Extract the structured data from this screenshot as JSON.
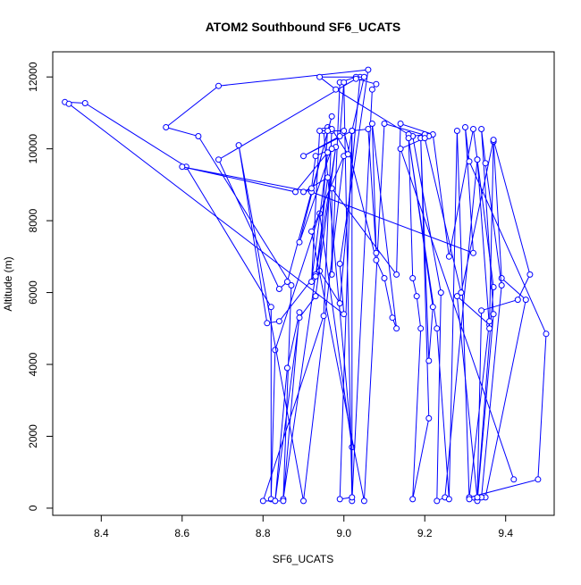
{
  "chart_data": {
    "type": "line",
    "title": "ATOM2 Southbound SF6_UCATS",
    "xlabel": "SF6_UCATS",
    "ylabel": "Altitude (m)",
    "xlim": [
      8.28,
      9.52
    ],
    "ylim": [
      -200,
      12700
    ],
    "xticks": [
      8.4,
      8.6,
      8.8,
      9.0,
      9.2,
      9.4
    ],
    "yticks": [
      0,
      2000,
      4000,
      6000,
      8000,
      10000,
      12000
    ],
    "xtick_labels": [
      "8.4",
      "8.6",
      "8.8",
      "9.0",
      "9.2",
      "9.4"
    ],
    "ytick_labels": [
      "0",
      "2000",
      "4000",
      "6000",
      "8000",
      "10000",
      "12000"
    ],
    "line_color": "#0000ff",
    "marker": "open-circle",
    "grid": false,
    "legend": "none",
    "series": [
      {
        "points": [
          [
            8.31,
            11300
          ],
          [
            8.36,
            11270
          ],
          [
            8.61,
            9500
          ],
          [
            8.82,
            5600
          ],
          [
            8.82,
            250
          ],
          [
            8.83,
            4400
          ],
          [
            8.94,
            8200
          ],
          [
            9.02,
            1700
          ],
          [
            8.95,
            10500
          ],
          [
            8.96,
            10600
          ],
          [
            8.94,
            6600
          ],
          [
            8.99,
            5700
          ],
          [
            9.04,
            12000
          ],
          [
            9.03,
            12000
          ],
          [
            8.99,
            11850
          ],
          [
            8.97,
            6500
          ],
          [
            8.97,
            8900
          ],
          [
            9.13,
            6500
          ],
          [
            9.14,
            10700
          ],
          [
            9.22,
            10400
          ],
          [
            9.26,
            7000
          ],
          [
            9.32,
            10550
          ],
          [
            9.33,
            9700
          ],
          [
            9.37,
            6150
          ],
          [
            9.33,
            250
          ],
          [
            9.28,
            5900
          ],
          [
            9.36,
            5100
          ],
          [
            9.37,
            10200
          ],
          [
            9.39,
            6400
          ],
          [
            9.45,
            5800
          ],
          [
            9.35,
            300
          ]
        ]
      },
      {
        "points": [
          [
            8.32,
            11250
          ],
          [
            9.0,
            5400
          ],
          [
            8.99,
            6800
          ],
          [
            9.06,
            12200
          ],
          [
            8.69,
            11750
          ],
          [
            8.56,
            10600
          ],
          [
            8.64,
            10350
          ],
          [
            8.87,
            6200
          ],
          [
            8.85,
            250
          ],
          [
            8.93,
            6500
          ],
          [
            8.84,
            5200
          ],
          [
            8.81,
            5150
          ],
          [
            8.74,
            10100
          ],
          [
            8.9,
            200
          ],
          [
            9.0,
            9800
          ],
          [
            8.92,
            7700
          ],
          [
            9.05,
            200
          ],
          [
            9.1,
            10700
          ],
          [
            9.21,
            10350
          ],
          [
            9.2,
            10400
          ],
          [
            9.17,
            10350
          ],
          [
            9.24,
            6000
          ],
          [
            9.23,
            200
          ],
          [
            9.25,
            300
          ],
          [
            9.33,
            9700
          ],
          [
            9.36,
            5000
          ],
          [
            9.36,
            5200
          ],
          [
            9.31,
            300
          ],
          [
            9.48,
            800
          ],
          [
            9.5,
            4850
          ],
          [
            9.31,
            9650
          ],
          [
            9.3,
            10600
          ],
          [
            9.32,
            7100
          ],
          [
            8.92,
            8800
          ],
          [
            8.6,
            9500
          ],
          [
            8.88,
            8800
          ],
          [
            8.96,
            9900
          ],
          [
            8.92,
            6300
          ],
          [
            8.94,
            10500
          ],
          [
            8.97,
            10500
          ],
          [
            9.0,
            10500
          ],
          [
            9.08,
            6900
          ],
          [
            9.1,
            6400
          ],
          [
            9.12,
            5300
          ],
          [
            9.13,
            5000
          ],
          [
            9.07,
            10700
          ],
          [
            9.08,
            7100
          ],
          [
            9.06,
            10550
          ],
          [
            9.02,
            10500
          ],
          [
            9.01,
            9850
          ],
          [
            8.97,
            10550
          ],
          [
            8.95,
            5350
          ],
          [
            8.8,
            200
          ],
          [
            8.85,
            200
          ],
          [
            8.89,
            5450
          ],
          [
            8.86,
            3900
          ],
          [
            8.83,
            200
          ],
          [
            8.89,
            5300
          ],
          [
            8.93,
            5900
          ],
          [
            8.98,
            10050
          ],
          [
            8.93,
            6450
          ],
          [
            8.96,
            9200
          ],
          [
            8.9,
            8800
          ],
          [
            8.92,
            8900
          ],
          [
            8.93,
            9800
          ],
          [
            8.97,
            10000
          ],
          [
            8.89,
            7400
          ],
          [
            8.96,
            10500
          ],
          [
            8.97,
            10900
          ],
          [
            8.86,
            6300
          ],
          [
            8.84,
            6100
          ],
          [
            8.69,
            9700
          ],
          [
            9.03,
            11950
          ],
          [
            9.08,
            11800
          ],
          [
            9.07,
            11650
          ],
          [
            9.02,
            200
          ],
          [
            9.0,
            11850
          ],
          [
            8.99,
            10350
          ],
          [
            8.9,
            9800
          ],
          [
            9.02,
            10500
          ],
          [
            8.99,
            250
          ],
          [
            9.02,
            300
          ],
          [
            9.02,
            10500
          ],
          [
            9.05,
            12000
          ],
          [
            8.94,
            12000
          ],
          [
            8.98,
            11650
          ],
          [
            9.16,
            10400
          ],
          [
            9.17,
            6400
          ],
          [
            9.18,
            5900
          ],
          [
            9.19,
            5000
          ],
          [
            9.17,
            250
          ],
          [
            9.21,
            2500
          ],
          [
            9.19,
            10300
          ],
          [
            9.21,
            4100
          ],
          [
            9.22,
            5600
          ],
          [
            9.16,
            10300
          ],
          [
            9.23,
            5000
          ],
          [
            9.26,
            250
          ],
          [
            9.28,
            10500
          ],
          [
            9.31,
            250
          ],
          [
            9.33,
            200
          ],
          [
            9.37,
            5400
          ],
          [
            9.34,
            10550
          ],
          [
            9.35,
            9600
          ],
          [
            9.39,
            6200
          ],
          [
            9.34,
            300
          ],
          [
            9.33,
            300
          ],
          [
            9.34,
            5500
          ],
          [
            9.43,
            5800
          ],
          [
            9.46,
            6500
          ],
          [
            9.37,
            10250
          ],
          [
            9.29,
            6000
          ],
          [
            9.2,
            10300
          ],
          [
            9.14,
            10000
          ],
          [
            9.42,
            800
          ]
        ]
      }
    ]
  }
}
